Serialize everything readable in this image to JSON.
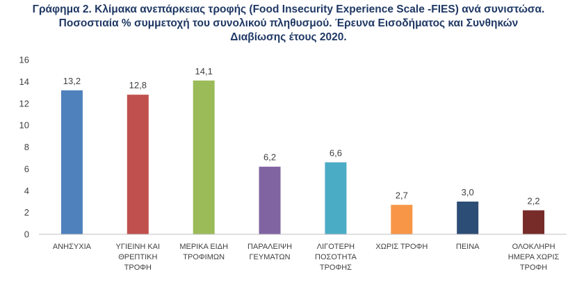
{
  "title_lines": [
    "Γράφημα 2. Κλίμακα ανεπάρκειας τροφής (Food Insecurity Experience Scale -FIES) ανά συνιστώσα.",
    "Ποσοστιαία % συμμετοχή του συνολικού πληθυσμού. Έρευνα Εισοδήματος και Συνθηκών",
    "Διαβίωσης έτους 2020."
  ],
  "chart_data": {
    "type": "bar",
    "title": "Γράφημα 2. Κλίμακα ανεπάρκειας τροφής (Food Insecurity Experience Scale -FIES) ανά συνιστώσα. Ποσοστιαία % συμμετοχή του συνολικού πληθυσμού. Έρευνα Εισοδήματος και Συνθηκών Διαβίωσης έτους 2020.",
    "categories": [
      [
        "ΑΝΗΣΥΧΙΑ"
      ],
      [
        "ΥΓΙΕΙΝΗ ΚΑΙ",
        "ΘΡΕΠΤΙΚΗ",
        "ΤΡΟΦΗ"
      ],
      [
        "ΜΕΡΙΚΑ ΕΙΔΗ",
        "ΤΡΟΦΙΜΩΝ"
      ],
      [
        "ΠΑΡΑΛΕΙΨΗ",
        "ΓΕΥΜΑΤΩΝ"
      ],
      [
        "ΛΙΓΟΤΕΡΗ",
        "ΠΟΣΟΤΗΤΑ",
        "ΤΡΟΦΗΣ"
      ],
      [
        "ΧΩΡΙΣ ΤΡΟΦΗ"
      ],
      [
        "ΠΕΙΝΑ"
      ],
      [
        "ΟΛΟΚΛΗΡΗ",
        "ΗΜΕΡΑ ΧΩΡΙΣ",
        "ΤΡΟΦΗ"
      ]
    ],
    "values": [
      13.2,
      12.8,
      14.1,
      6.2,
      6.6,
      2.7,
      3.0,
      2.2
    ],
    "value_labels": [
      "13,2",
      "12,8",
      "14,1",
      "6,2",
      "6,6",
      "2,7",
      "3,0",
      "2,2"
    ],
    "colors": [
      "#4f81bd",
      "#c0504d",
      "#9bbb59",
      "#8064a2",
      "#4bacc6",
      "#f79646",
      "#2c4d75",
      "#772c2a"
    ],
    "yticks": [
      "0",
      "2",
      "4",
      "6",
      "8",
      "10",
      "12",
      "14",
      "16"
    ],
    "ylim": [
      0,
      16
    ],
    "grid": false,
    "xlabel": "",
    "ylabel": ""
  }
}
